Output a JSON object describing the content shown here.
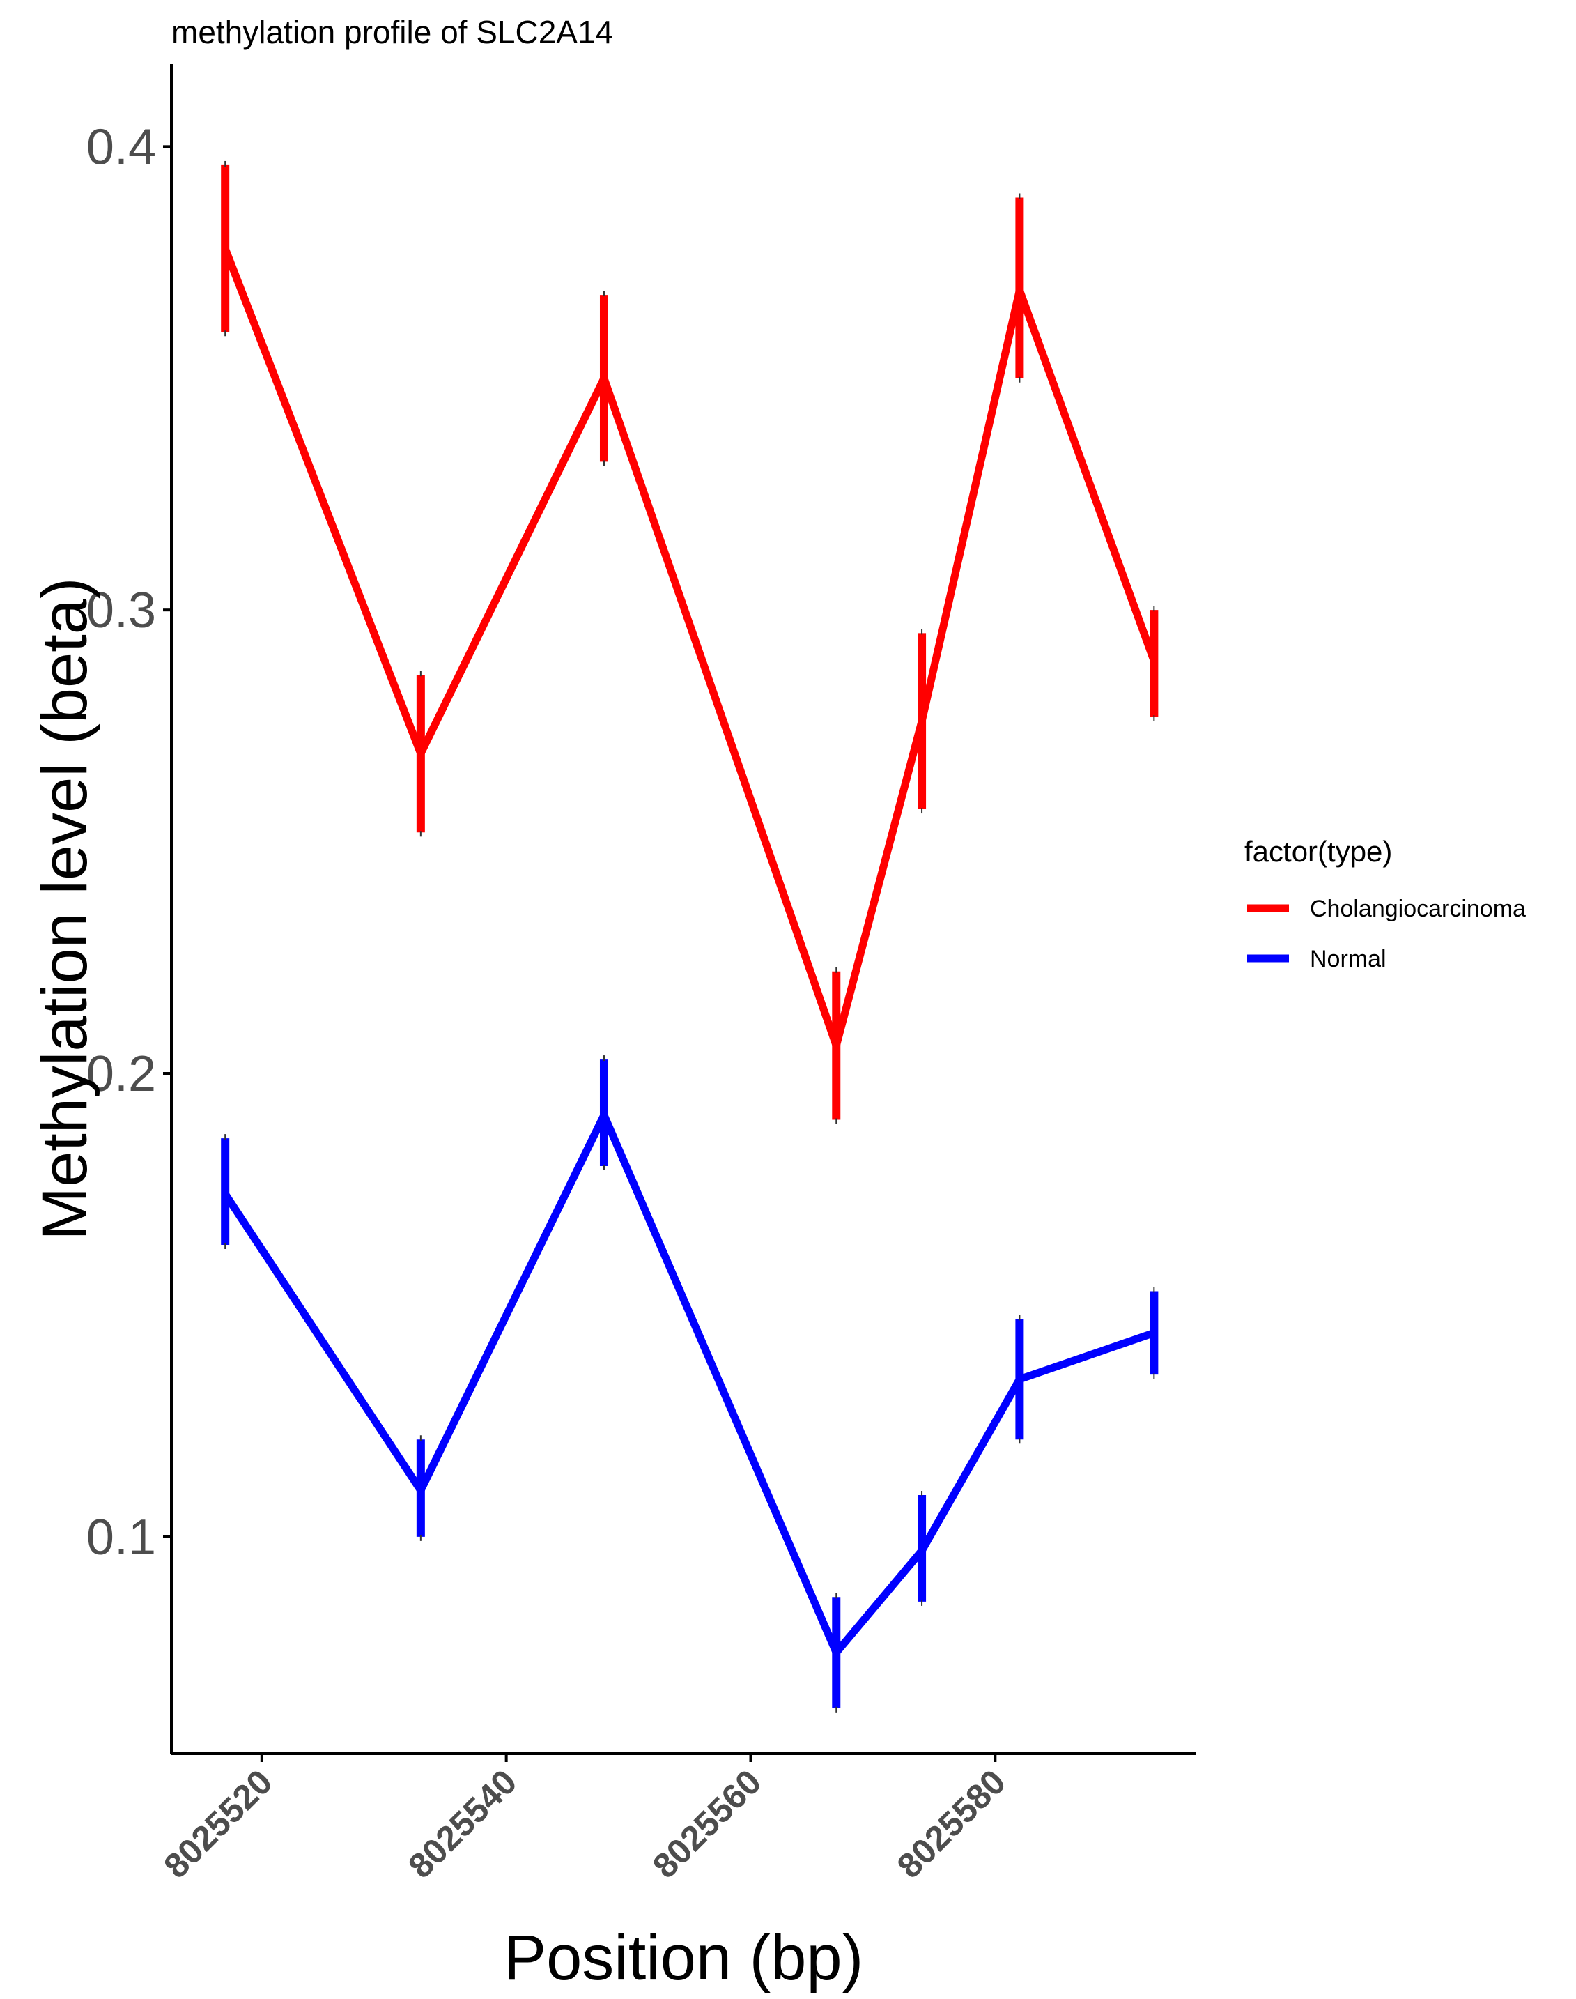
{
  "chart_data": {
    "type": "line",
    "title": "methylation profile of SLC2A14",
    "xlabel": "Position (bp)",
    "ylabel": "Methylation level (beta)",
    "xlim": [
      8025512.6,
      8025596.4
    ],
    "ylim": [
      0.0532,
      0.4178
    ],
    "x_ticks": [
      8025520,
      8025540,
      8025560,
      8025580
    ],
    "x_tick_labels": [
      "8025520",
      "8025540",
      "8025560",
      "8025580"
    ],
    "y_ticks": [
      0.1,
      0.2,
      0.3,
      0.4
    ],
    "y_tick_labels": [
      "0.1",
      "0.2",
      "0.3",
      "0.4"
    ],
    "grid": false,
    "legend": {
      "title": "factor(type)",
      "position": "right"
    },
    "series": [
      {
        "name": "Cholangiocarcinoma",
        "color": "#ff0000",
        "x": [
          8025517,
          8025533,
          8025548,
          8025567,
          8025574,
          8025582,
          8025593
        ],
        "y": [
          0.378,
          0.269,
          0.35,
          0.206,
          0.276,
          0.369,
          0.289
        ],
        "ymin": [
          0.36,
          0.252,
          0.332,
          0.19,
          0.257,
          0.35,
          0.277
        ],
        "ymax": [
          0.396,
          0.286,
          0.368,
          0.222,
          0.295,
          0.389,
          0.3
        ]
      },
      {
        "name": "Normal",
        "color": "#0000ff",
        "x": [
          8025517,
          8025533,
          8025548,
          8025567,
          8025574,
          8025582,
          8025593
        ],
        "y": [
          0.174,
          0.11,
          0.191,
          0.075,
          0.097,
          0.134,
          0.144
        ],
        "ymin": [
          0.163,
          0.1,
          0.18,
          0.063,
          0.086,
          0.121,
          0.135
        ],
        "ymax": [
          0.186,
          0.121,
          0.203,
          0.087,
          0.109,
          0.147,
          0.153
        ]
      }
    ]
  }
}
